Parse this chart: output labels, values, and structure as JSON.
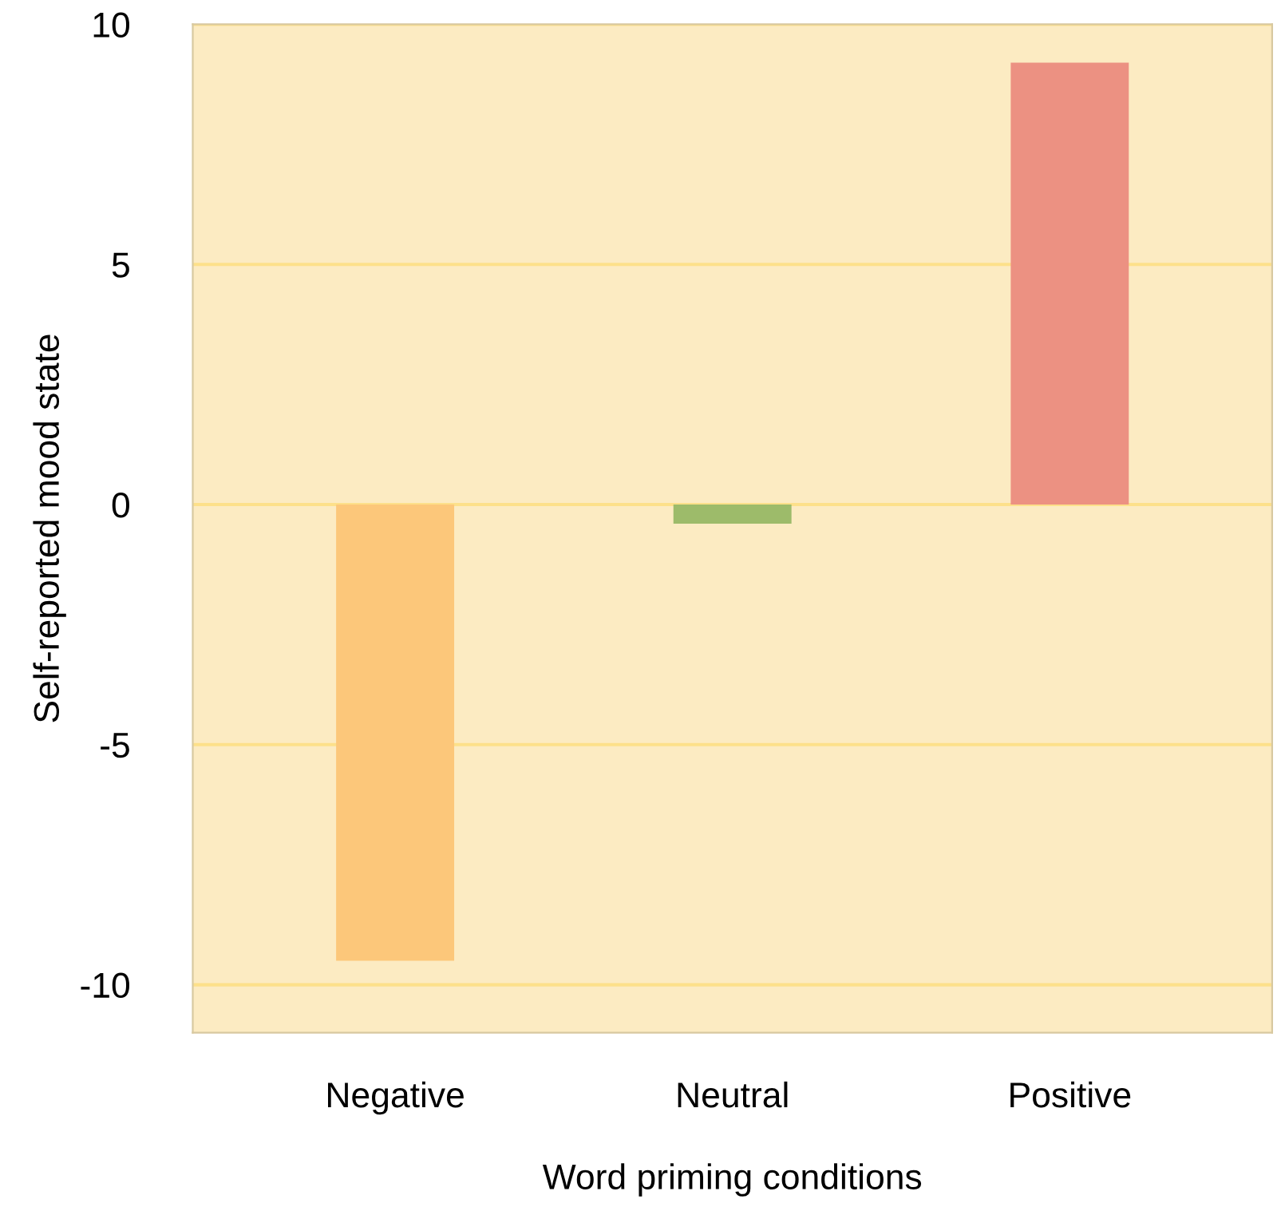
{
  "chart_data": {
    "type": "bar",
    "xlabel": "Word priming conditions",
    "ylabel": "Self-reported mood state",
    "categories": [
      "Negative",
      "Neutral",
      "Positive"
    ],
    "values": [
      -9.5,
      -0.4,
      9.2
    ],
    "colors": [
      "#fcc77a",
      "#9dbb6a",
      "#ec9182"
    ],
    "ylim": [
      -11,
      10
    ],
    "yticks": [
      10,
      5,
      0,
      -5,
      -10
    ],
    "grid": "y"
  }
}
